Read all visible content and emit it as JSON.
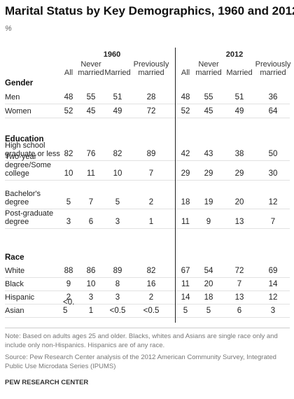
{
  "title": "Marital Status by Key Demographics, 1960 and 2012",
  "subtitle": "%",
  "groups": [
    "1960",
    "2012"
  ],
  "columns": [
    {
      "lines": [
        "All"
      ]
    },
    {
      "lines": [
        "Never",
        "married"
      ]
    },
    {
      "lines": [
        "Married"
      ]
    },
    {
      "lines": [
        "Previously",
        "married"
      ]
    },
    {
      "lines": [
        "All"
      ]
    },
    {
      "lines": [
        "Never",
        "married"
      ]
    },
    {
      "lines": [
        "Married"
      ]
    },
    {
      "lines": [
        "Previously",
        "married"
      ]
    }
  ],
  "sections": [
    {
      "title": "Gender",
      "rows": [
        {
          "label": [
            "Men"
          ],
          "values": [
            "48",
            "55",
            "51",
            "28",
            "48",
            "55",
            "51",
            "36"
          ]
        },
        {
          "label": [
            "Women"
          ],
          "values": [
            "52",
            "45",
            "49",
            "72",
            "52",
            "45",
            "49",
            "64"
          ]
        }
      ]
    },
    {
      "title": "Education",
      "rows": [
        {
          "label": [
            "High school",
            "graduate or less"
          ],
          "values": [
            "82",
            "76",
            "82",
            "89",
            "42",
            "43",
            "38",
            "50"
          ]
        },
        {
          "label": [
            "Two-year",
            "degree/Some",
            "college"
          ],
          "values": [
            "10",
            "11",
            "10",
            "7",
            "29",
            "29",
            "29",
            "30"
          ]
        },
        {
          "label": [
            "Bachelor's",
            "degree"
          ],
          "values": [
            "5",
            "7",
            "5",
            "2",
            "18",
            "19",
            "20",
            "12"
          ]
        },
        {
          "label": [
            "Post-graduate",
            "degree"
          ],
          "values": [
            "3",
            "6",
            "3",
            "1",
            "11",
            "9",
            "13",
            "7"
          ]
        }
      ]
    },
    {
      "title": "Race",
      "rows": [
        {
          "label": [
            "White"
          ],
          "values": [
            "88",
            "86",
            "89",
            "82",
            "67",
            "54",
            "72",
            "69"
          ]
        },
        {
          "label": [
            "Black"
          ],
          "values": [
            "9",
            "10",
            "8",
            "16",
            "11",
            "20",
            "7",
            "14"
          ]
        },
        {
          "label": [
            "Hispanic"
          ],
          "values": [
            "2",
            "3",
            "3",
            "2",
            "14",
            "18",
            "13",
            "12"
          ]
        },
        {
          "label": [
            "Asian"
          ],
          "values": [
            "<0.\n5",
            "1",
            "<0.5",
            "<0.5",
            "5",
            "5",
            "6",
            "3"
          ]
        }
      ]
    }
  ],
  "note": "Note: Based on adults ages 25 and older. Blacks, whites and Asians are single race only and include only non-Hispanics. Hispanics are of any race.",
  "source": "Source: Pew Research Center analysis of the 2012 American Community Survey, Integrated Public Use Microdata Series (IPUMS)",
  "brand": "PEW RESEARCH CENTER"
}
